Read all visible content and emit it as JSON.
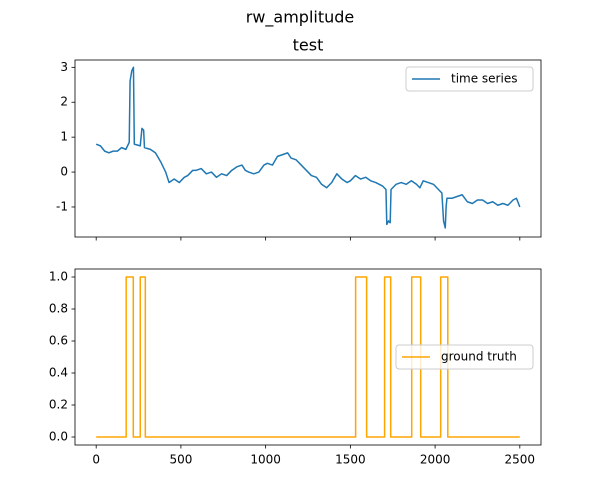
{
  "title": "rw_amplitude",
  "chart_data": [
    {
      "type": "line",
      "title": "test",
      "x": [
        0,
        25,
        50,
        75,
        100,
        125,
        150,
        175,
        190,
        195,
        200,
        210,
        220,
        225,
        260,
        270,
        280,
        285,
        320,
        350,
        380,
        410,
        430,
        460,
        490,
        520,
        540,
        570,
        590,
        620,
        650,
        680,
        710,
        740,
        770,
        800,
        830,
        860,
        880,
        900,
        930,
        960,
        990,
        1010,
        1040,
        1070,
        1100,
        1130,
        1150,
        1180,
        1210,
        1240,
        1270,
        1300,
        1330,
        1360,
        1390,
        1420,
        1450,
        1480,
        1500,
        1530,
        1560,
        1590,
        1620,
        1650,
        1690,
        1710,
        1715,
        1725,
        1735,
        1740,
        1770,
        1800,
        1830,
        1860,
        1890,
        1910,
        1930,
        1960,
        1990,
        2020,
        2040,
        2050,
        2060,
        2065,
        2070,
        2100,
        2130,
        2160,
        2190,
        2220,
        2250,
        2280,
        2310,
        2340,
        2370,
        2400,
        2430,
        2460,
        2480,
        2500
      ],
      "series": [
        {
          "name": "time series",
          "color": "#1f77b4",
          "values": [
            0.8,
            0.75,
            0.6,
            0.55,
            0.6,
            0.6,
            0.7,
            0.65,
            0.8,
            0.85,
            2.6,
            2.9,
            3.0,
            0.8,
            0.75,
            1.25,
            1.2,
            0.7,
            0.65,
            0.55,
            0.3,
            0.0,
            -0.3,
            -0.2,
            -0.3,
            -0.15,
            -0.1,
            0.05,
            0.05,
            0.1,
            -0.05,
            0.0,
            -0.15,
            -0.05,
            -0.1,
            0.05,
            0.15,
            0.2,
            0.05,
            0.0,
            -0.05,
            0.0,
            0.2,
            0.25,
            0.2,
            0.45,
            0.5,
            0.55,
            0.4,
            0.35,
            0.2,
            0.05,
            -0.1,
            -0.15,
            -0.35,
            -0.45,
            -0.3,
            -0.05,
            -0.2,
            -0.3,
            -0.25,
            -0.1,
            -0.2,
            -0.15,
            -0.25,
            -0.3,
            -0.4,
            -0.5,
            -1.5,
            -1.4,
            -1.45,
            -0.5,
            -0.35,
            -0.3,
            -0.35,
            -0.25,
            -0.35,
            -0.45,
            -0.25,
            -0.3,
            -0.35,
            -0.5,
            -0.6,
            -1.4,
            -1.6,
            -1.0,
            -0.75,
            -0.75,
            -0.7,
            -0.65,
            -0.85,
            -0.9,
            -0.8,
            -0.8,
            -0.9,
            -0.85,
            -0.95,
            -0.9,
            -0.95,
            -0.8,
            -0.75,
            -1.0
          ]
        }
      ],
      "xlim": [
        -125,
        2625
      ],
      "ylim": [
        -1.86,
        3.21
      ],
      "yticks": [
        -1,
        0,
        1,
        2,
        3
      ],
      "legend": "upper right"
    },
    {
      "type": "line",
      "x": [
        0,
        177,
        177,
        219,
        219,
        260,
        260,
        290,
        290,
        1531,
        1531,
        1596,
        1596,
        1702,
        1702,
        1738,
        1738,
        1862,
        1862,
        1915,
        1915,
        2033,
        2033,
        2075,
        2075,
        2500
      ],
      "series": [
        {
          "name": "ground truth",
          "color": "#ffa500",
          "values": [
            0,
            0,
            1,
            1,
            0,
            0,
            1,
            1,
            0,
            0,
            1,
            1,
            0,
            0,
            1,
            1,
            0,
            0,
            1,
            1,
            0,
            0,
            1,
            1,
            0,
            0
          ]
        }
      ],
      "xlim": [
        -125,
        2625
      ],
      "xticks": [
        0,
        500,
        1000,
        1500,
        2000,
        2500
      ],
      "ylim": [
        -0.05,
        1.05
      ],
      "yticks": [
        {
          "value": 0,
          "label": "0.0"
        },
        0.2,
        0.4,
        0.6,
        0.8,
        {
          "value": 1,
          "label": "1.0"
        }
      ],
      "legend": "center right"
    }
  ]
}
